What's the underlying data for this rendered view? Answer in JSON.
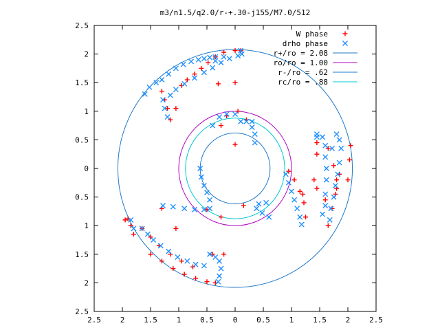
{
  "chart_data": {
    "type": "scatter",
    "title": "m3/n1.5/q2.0/r-+.30-j155/M7.0/512",
    "xlabel": "",
    "ylabel": "",
    "xlim": [
      -2.5,
      2.5
    ],
    "ylim": [
      -2.5,
      2.5
    ],
    "x_tick_values": [
      -2.5,
      -2,
      -1.5,
      -1,
      -0.5,
      0,
      0.5,
      1,
      1.5,
      2,
      2.5
    ],
    "x_tick_labels": [
      "2.5",
      "2",
      "1.5",
      "1",
      "0.5",
      "0",
      "0.5",
      "1",
      "1.5",
      "2",
      "2.5"
    ],
    "y_tick_values": [
      2.5,
      2,
      1.5,
      1,
      0.5,
      0,
      -0.5,
      -1,
      -1.5,
      -2,
      -2.5
    ],
    "y_tick_labels": [
      "2.5",
      "2",
      "1.5",
      "1",
      "0.5",
      "0",
      "0.5",
      "1",
      "1.5",
      "2",
      "2.5"
    ],
    "grid": false,
    "legend_position": "top-right",
    "series": [
      {
        "name": "W phase",
        "marker": "plus",
        "color": "#ff0000",
        "points": [
          [
            -0.95,
            1.45
          ],
          [
            -0.85,
            1.55
          ],
          [
            -0.72,
            1.65
          ],
          [
            -0.6,
            1.75
          ],
          [
            -0.48,
            1.85
          ],
          [
            -0.35,
            1.95
          ],
          [
            -0.2,
            2.03
          ],
          [
            0.0,
            2.06
          ],
          [
            0.1,
            2.06
          ],
          [
            -1.3,
            1.35
          ],
          [
            -1.25,
            1.2
          ],
          [
            -1.2,
            1.05
          ],
          [
            -1.15,
            0.85
          ],
          [
            -0.3,
            1.48
          ],
          [
            0.0,
            1.5
          ],
          [
            -1.05,
            1.05
          ],
          [
            -0.25,
            0.75
          ],
          [
            -0.15,
            0.92
          ],
          [
            0.05,
            1.0
          ],
          [
            0.2,
            0.85
          ],
          [
            0.0,
            0.42
          ],
          [
            1.65,
            0.35
          ],
          [
            1.75,
            0.05
          ],
          [
            1.8,
            -0.2
          ],
          [
            1.78,
            -0.45
          ],
          [
            1.72,
            -0.7
          ],
          [
            1.65,
            -1.0
          ],
          [
            1.8,
            -0.35
          ],
          [
            1.85,
            -0.1
          ],
          [
            1.45,
            0.45
          ],
          [
            1.45,
            0.25
          ],
          [
            1.4,
            -0.2
          ],
          [
            1.45,
            -0.35
          ],
          [
            2.05,
            0.4
          ],
          [
            2.0,
            -0.2
          ],
          [
            2.03,
            0.15
          ],
          [
            1.6,
            -0.55
          ],
          [
            0.95,
            -0.05
          ],
          [
            1.05,
            -0.2
          ],
          [
            1.15,
            -0.4
          ],
          [
            1.22,
            -0.6
          ],
          [
            1.25,
            -0.85
          ],
          [
            1.2,
            -0.45
          ],
          [
            -1.9,
            -0.88
          ],
          [
            -1.85,
            -1.0
          ],
          [
            -1.65,
            -1.05
          ],
          [
            -1.5,
            -1.2
          ],
          [
            -1.35,
            -1.35
          ],
          [
            -1.15,
            -1.5
          ],
          [
            -0.95,
            -1.62
          ],
          [
            -0.75,
            -1.72
          ],
          [
            -1.5,
            -1.5
          ],
          [
            -1.3,
            -1.62
          ],
          [
            -1.1,
            -1.75
          ],
          [
            -0.9,
            -1.85
          ],
          [
            -0.7,
            -1.92
          ],
          [
            -0.5,
            -1.98
          ],
          [
            -0.35,
            -2.0
          ],
          [
            -1.95,
            -0.9
          ],
          [
            -1.8,
            -1.15
          ],
          [
            -0.4,
            -1.5
          ],
          [
            -0.2,
            -1.5
          ],
          [
            -1.3,
            -0.7
          ],
          [
            -1.05,
            -1.05
          ],
          [
            -0.25,
            -0.85
          ],
          [
            0.15,
            -0.65
          ],
          [
            -0.5,
            -0.72
          ]
        ]
      },
      {
        "name": "drho phase",
        "marker": "cross",
        "color": "#1e90ff",
        "points": [
          [
            -1.6,
            1.3
          ],
          [
            -1.52,
            1.42
          ],
          [
            -1.4,
            1.5
          ],
          [
            -1.3,
            1.55
          ],
          [
            -1.18,
            1.65
          ],
          [
            -1.05,
            1.75
          ],
          [
            -0.92,
            1.82
          ],
          [
            -0.78,
            1.87
          ],
          [
            -0.65,
            1.9
          ],
          [
            -0.55,
            1.92
          ],
          [
            -0.45,
            1.94
          ],
          [
            -0.35,
            1.95
          ],
          [
            -1.28,
            1.2
          ],
          [
            -1.25,
            1.05
          ],
          [
            -1.2,
            0.9
          ],
          [
            -1.15,
            1.28
          ],
          [
            -1.05,
            1.38
          ],
          [
            -0.9,
            1.48
          ],
          [
            -0.72,
            1.58
          ],
          [
            -0.55,
            1.68
          ],
          [
            -0.4,
            1.76
          ],
          [
            -0.25,
            1.85
          ],
          [
            -0.1,
            1.92
          ],
          [
            0.05,
            1.97
          ],
          [
            0.12,
            2.0
          ],
          [
            -0.35,
            1.88
          ],
          [
            -0.2,
            1.95
          ],
          [
            0.1,
            2.06
          ],
          [
            -0.4,
            0.75
          ],
          [
            -0.28,
            0.9
          ],
          [
            -0.15,
            0.95
          ],
          [
            0.0,
            0.95
          ],
          [
            0.1,
            0.82
          ],
          [
            0.2,
            0.82
          ],
          [
            0.3,
            0.72
          ],
          [
            0.35,
            0.6
          ],
          [
            0.35,
            0.45
          ],
          [
            0.3,
            0.82
          ],
          [
            1.45,
            0.6
          ],
          [
            1.55,
            0.55
          ],
          [
            1.6,
            0.4
          ],
          [
            1.6,
            0.2
          ],
          [
            1.62,
            0.0
          ],
          [
            1.62,
            -0.2
          ],
          [
            1.6,
            -0.45
          ],
          [
            1.6,
            -0.65
          ],
          [
            1.55,
            -0.8
          ],
          [
            1.45,
            0.55
          ],
          [
            1.88,
            0.35
          ],
          [
            1.85,
            0.5
          ],
          [
            1.8,
            0.6
          ],
          [
            1.85,
            0.1
          ],
          [
            1.82,
            -0.1
          ],
          [
            1.78,
            -0.3
          ],
          [
            1.75,
            -0.5
          ],
          [
            1.7,
            -0.7
          ],
          [
            1.68,
            -0.9
          ],
          [
            1.72,
            0.35
          ],
          [
            0.9,
            -0.1
          ],
          [
            0.95,
            -0.25
          ],
          [
            1.0,
            -0.4
          ],
          [
            1.05,
            -0.55
          ],
          [
            1.1,
            -0.7
          ],
          [
            1.15,
            -0.85
          ],
          [
            1.18,
            -0.98
          ],
          [
            0.6,
            -0.85
          ],
          [
            0.48,
            -0.78
          ],
          [
            0.38,
            -0.7
          ],
          [
            0.42,
            -0.62
          ],
          [
            0.55,
            -0.6
          ],
          [
            -1.85,
            -0.9
          ],
          [
            -1.8,
            -1.05
          ],
          [
            -1.65,
            -1.05
          ],
          [
            -1.55,
            -1.15
          ],
          [
            -1.45,
            -1.25
          ],
          [
            -1.32,
            -1.35
          ],
          [
            -1.18,
            -1.45
          ],
          [
            -1.02,
            -1.55
          ],
          [
            -0.85,
            -1.62
          ],
          [
            -0.7,
            -1.68
          ],
          [
            -0.55,
            -1.7
          ],
          [
            -0.45,
            -1.5
          ],
          [
            -0.35,
            -1.55
          ],
          [
            -0.28,
            -1.62
          ],
          [
            -0.25,
            -1.75
          ],
          [
            -0.28,
            -1.88
          ],
          [
            -0.3,
            -1.98
          ],
          [
            -1.28,
            -0.65
          ],
          [
            -1.1,
            -0.67
          ],
          [
            -0.9,
            -0.7
          ],
          [
            -0.72,
            -0.72
          ],
          [
            -0.55,
            -0.72
          ],
          [
            -0.45,
            -0.7
          ],
          [
            -0.45,
            -0.55
          ],
          [
            -0.5,
            -0.42
          ],
          [
            -0.55,
            -0.3
          ],
          [
            -0.6,
            -0.15
          ],
          [
            -0.62,
            0.0
          ]
        ]
      }
    ],
    "circles": [
      {
        "name": "r+/ro = 2.08",
        "radius": 2.08,
        "color": "#1e78c8"
      },
      {
        "name": "ro/ro = 1.00",
        "radius": 1.0,
        "color": "#b000c0"
      },
      {
        "name": "r-/ro = .62",
        "radius": 0.62,
        "color": "#1e78c8"
      },
      {
        "name": "rc/ro = .88",
        "radius": 0.88,
        "color": "#00c8d0"
      }
    ]
  }
}
